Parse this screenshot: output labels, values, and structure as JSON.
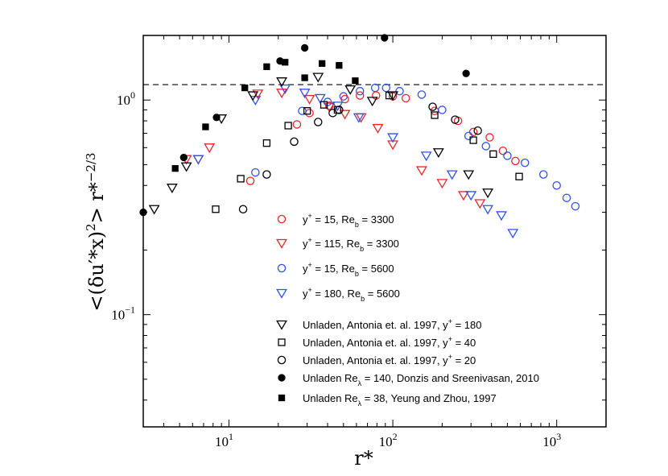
{
  "chart_data": {
    "type": "scatter",
    "title": "",
    "xlabel": "r*",
    "ylabel_parts": {
      "lhs": "<(δu′*x)",
      "exp1": "2",
      "mid": "> r*",
      "exp2": "−2/3"
    },
    "xscale": "log",
    "yscale": "log",
    "xlim": [
      3,
      2000
    ],
    "ylim": [
      0.03,
      2.0
    ],
    "x_ticks": [
      {
        "value": 10,
        "base": "10",
        "exp": "1"
      },
      {
        "value": 100,
        "base": "10",
        "exp": "2"
      },
      {
        "value": 1000,
        "base": "10",
        "exp": "3"
      }
    ],
    "y_ticks": [
      {
        "value": 0.1,
        "base": "10",
        "exp": "−1"
      },
      {
        "value": 1,
        "label": "10",
        "suffix": "0"
      }
    ],
    "reference_line": {
      "y": 1.18,
      "style": "dashed"
    },
    "legend_position": "center",
    "series": [
      {
        "name": "y+ = 15, Reb = 3300",
        "label_main": "y",
        "label_sup": "+",
        "label_rest1": " = 15, Re",
        "label_sub": "b",
        "label_rest2": " = 3300",
        "marker": "circle",
        "color": "#e8262a",
        "filled": false,
        "x": [
          13.5,
          26,
          31,
          41,
          51,
          63,
          79,
          100,
          120,
          180,
          250,
          310,
          390,
          470,
          560
        ],
        "y": [
          0.42,
          0.77,
          0.87,
          0.94,
          1.01,
          1.05,
          1.05,
          1.04,
          1.02,
          0.89,
          0.8,
          0.71,
          0.67,
          0.58,
          0.52
        ]
      },
      {
        "name": "y+ = 115, Reb = 3300",
        "label_main": "y",
        "label_sup": "+",
        "label_rest1": " = 115, Re",
        "label_sub": "b",
        "label_rest2": " = 3300",
        "marker": "triangle-down",
        "color": "#e8262a",
        "filled": false,
        "x": [
          5.5,
          6.5,
          7.6,
          15,
          21,
          31,
          41,
          51,
          64,
          81,
          100,
          150,
          200,
          270,
          340
        ],
        "y": [
          0.53,
          0.53,
          0.6,
          1.07,
          1.08,
          1.01,
          0.93,
          0.86,
          0.83,
          0.74,
          0.62,
          0.47,
          0.41,
          0.36,
          0.33
        ]
      },
      {
        "name": "y+ = 15, Reb = 5600",
        "label_main": "y",
        "label_sup": "+",
        "label_rest1": " = 15, Re",
        "label_sub": "b",
        "label_rest2": " = 5600",
        "marker": "circle",
        "color": "#3050e8",
        "filled": false,
        "x": [
          14.5,
          28,
          40,
          50,
          63,
          78,
          91,
          110,
          150,
          200,
          290,
          370,
          500,
          640,
          830,
          1000,
          1150,
          1300
        ],
        "y": [
          0.46,
          0.89,
          0.98,
          1.04,
          1.1,
          1.14,
          1.14,
          1.1,
          1.06,
          0.9,
          0.68,
          0.61,
          0.55,
          0.51,
          0.45,
          0.4,
          0.35,
          0.32
        ]
      },
      {
        "name": "y+ = 180, Reb = 5600",
        "label_main": "y",
        "label_sup": "+",
        "label_rest1": " = 180, Re",
        "label_sub": "b",
        "label_rest2": " = 5600",
        "marker": "triangle-down",
        "color": "#3050e8",
        "filled": false,
        "x": [
          6.5,
          14.5,
          22,
          29,
          36,
          46,
          62,
          100,
          160,
          230,
          300,
          380,
          460,
          540
        ],
        "y": [
          0.53,
          1.0,
          1.13,
          1.08,
          1.02,
          0.94,
          0.83,
          0.67,
          0.55,
          0.45,
          0.36,
          0.31,
          0.29,
          0.24
        ]
      },
      {
        "name": "Unladen, Antonia et. al. 1997, y+ = 180",
        "label_main": "Unladen, Antonia et. al. 1997, y",
        "label_sup": "+",
        "label_rest1": " = 180",
        "marker": "triangle-down",
        "color": "#000000",
        "filled": false,
        "x": [
          3.5,
          4.5,
          5.5,
          9,
          14,
          21,
          35,
          55,
          75,
          100,
          190,
          290,
          380
        ],
        "y": [
          0.31,
          0.39,
          0.49,
          0.82,
          1.05,
          1.22,
          1.28,
          1.12,
          0.99,
          1.05,
          0.57,
          0.45,
          0.37
        ]
      },
      {
        "name": "Unladen, Antonia et. al. 1997, y+ = 40",
        "label_main": "Unladen, Antonia et. al. 1997, y",
        "label_sup": "+",
        "label_rest1": " = 40",
        "marker": "square",
        "color": "#000000",
        "filled": false,
        "x": [
          8.3,
          11.8,
          17,
          23,
          30,
          38,
          46,
          95,
          180,
          310,
          410,
          590
        ],
        "y": [
          0.31,
          0.43,
          0.63,
          0.76,
          0.89,
          0.95,
          0.9,
          1.05,
          0.85,
          0.65,
          0.56,
          0.44
        ]
      },
      {
        "name": "Unladen, Antonia et. al. 1997, y+ = 20",
        "label_main": "Unladen, Antonia et. al. 1997, y",
        "label_sup": "+",
        "label_rest1": " = 20",
        "marker": "circle",
        "color": "#000000",
        "filled": false,
        "x": [
          12.2,
          17,
          25,
          35,
          43,
          47,
          175,
          240,
          330
        ],
        "y": [
          0.31,
          0.45,
          0.64,
          0.79,
          0.87,
          0.9,
          0.93,
          0.81,
          0.72
        ]
      },
      {
        "name": "Unladen Reλ = 140, Donzis and Sreenivasan, 2010",
        "label_main": "Unladen Re",
        "label_sub": "λ",
        "label_rest2": " = 140, Donzis and Sreenivasan, 2010",
        "marker": "circle",
        "color": "#000000",
        "filled": true,
        "x": [
          3.0,
          5.3,
          8.4,
          20.5,
          29,
          89,
          280
        ],
        "y": [
          0.3,
          0.54,
          0.83,
          1.52,
          1.75,
          1.95,
          1.33
        ]
      },
      {
        "name": "Unladen Reλ = 38, Yeung and Zhou, 1997",
        "label_main": "Unladen Re",
        "label_sub": "λ",
        "label_rest2": " = 38, Yeung and Zhou, 1997",
        "marker": "square",
        "color": "#000000",
        "filled": true,
        "x": [
          4.7,
          7.2,
          12.5,
          17,
          22,
          29,
          37,
          47,
          59
        ],
        "y": [
          0.48,
          0.75,
          1.14,
          1.43,
          1.5,
          1.27,
          1.48,
          1.45,
          1.23
        ]
      }
    ]
  }
}
